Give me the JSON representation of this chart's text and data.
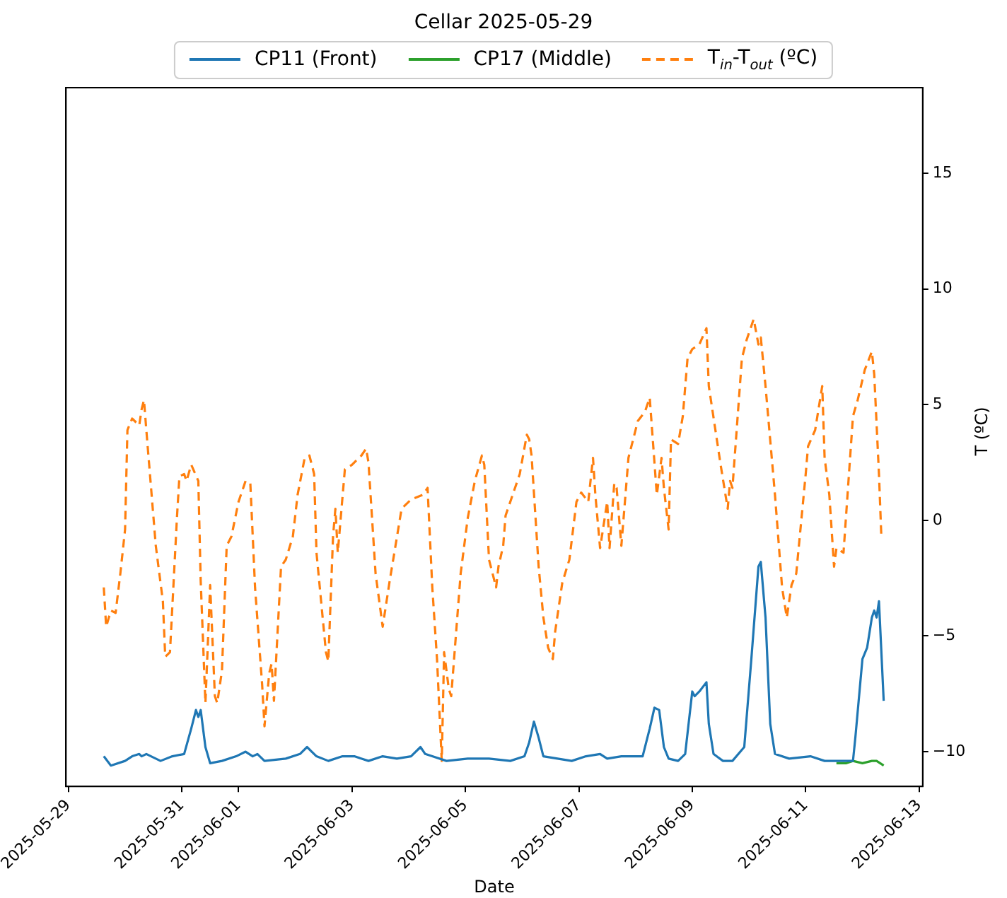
{
  "chart_data": {
    "type": "line",
    "title": "Cellar 2025-05-29",
    "xlabel": "Date",
    "y2label": "T (ºC)",
    "legend": "top",
    "grid": false,
    "marker": "none",
    "xlim": [
      "2025-05-28T23:00",
      "2025-06-13T01:30"
    ],
    "xticks": [
      "2025-05-29",
      "2025-05-31",
      "2025-06-01",
      "2025-06-03",
      "2025-06-05",
      "2025-06-07",
      "2025-06-09",
      "2025-06-11",
      "2025-06-13"
    ],
    "y2lim": [
      -11.5,
      18.7
    ],
    "y2ticks": [
      -10,
      -5,
      0,
      5,
      10,
      15
    ],
    "series": [
      {
        "name": "CP11 (Front)",
        "color": "#1f77b4",
        "axis": "y2",
        "line_style": "solid",
        "x": [
          "2025-05-29T15:00",
          "2025-05-29T18:00",
          "2025-05-30T00:00",
          "2025-05-30T03:00",
          "2025-05-30T06:00",
          "2025-05-30T07:00",
          "2025-05-30T09:00",
          "2025-05-30T15:00",
          "2025-05-30T20:00",
          "2025-05-31T01:00",
          "2025-05-31T04:00",
          "2025-05-31T06:00",
          "2025-05-31T07:00",
          "2025-05-31T08:00",
          "2025-05-31T10:00",
          "2025-05-31T12:00",
          "2025-05-31T17:00",
          "2025-05-31T23:00",
          "2025-06-01T03:00",
          "2025-06-01T06:00",
          "2025-06-01T08:00",
          "2025-06-01T11:00",
          "2025-06-01T20:00",
          "2025-06-02T02:00",
          "2025-06-02T05:00",
          "2025-06-02T07:00",
          "2025-06-02T09:00",
          "2025-06-02T14:00",
          "2025-06-02T20:00",
          "2025-06-03T01:00",
          "2025-06-03T07:00",
          "2025-06-03T13:00",
          "2025-06-03T19:00",
          "2025-06-04T01:00",
          "2025-06-04T05:00",
          "2025-06-04T07:00",
          "2025-06-04T10:00",
          "2025-06-04T16:00",
          "2025-06-05T01:00",
          "2025-06-05T10:00",
          "2025-06-05T19:00",
          "2025-06-06T01:00",
          "2025-06-06T03:00",
          "2025-06-06T05:00",
          "2025-06-06T07:00",
          "2025-06-06T09:00",
          "2025-06-06T15:00",
          "2025-06-06T21:00",
          "2025-06-07T03:00",
          "2025-06-07T09:00",
          "2025-06-07T12:00",
          "2025-06-07T18:00",
          "2025-06-08T03:00",
          "2025-06-08T06:00",
          "2025-06-08T08:00",
          "2025-06-08T10:00",
          "2025-06-08T12:00",
          "2025-06-08T14:00",
          "2025-06-08T18:00",
          "2025-06-08T21:00",
          "2025-06-09T00:00",
          "2025-06-09T01:00",
          "2025-06-09T03:00",
          "2025-06-09T06:00",
          "2025-06-09T07:00",
          "2025-06-09T09:00",
          "2025-06-09T13:00",
          "2025-06-09T17:00",
          "2025-06-09T22:00",
          "2025-06-10T01:00",
          "2025-06-10T04:00",
          "2025-06-10T05:00",
          "2025-06-10T07:00",
          "2025-06-10T09:00",
          "2025-06-10T11:00",
          "2025-06-10T17:00",
          "2025-06-11T02:00",
          "2025-06-11T08:00",
          "2025-06-11T13:00",
          "2025-06-11T17:00",
          "2025-06-11T20:00",
          "2025-06-11T21:00",
          "2025-06-12T00:00",
          "2025-06-12T02:00",
          "2025-06-12T04:00",
          "2025-06-12T05:00",
          "2025-06-12T06:00",
          "2025-06-12T07:00",
          "2025-06-12T09:00"
        ],
        "values": [
          -10.2,
          -10.6,
          -10.4,
          -10.2,
          -10.1,
          -10.2,
          -10.1,
          -10.4,
          -10.2,
          -10.1,
          -9.0,
          -8.2,
          -8.5,
          -8.2,
          -9.8,
          -10.5,
          -10.4,
          -10.2,
          -10.0,
          -10.2,
          -10.1,
          -10.4,
          -10.3,
          -10.1,
          -9.8,
          -10.0,
          -10.2,
          -10.4,
          -10.2,
          -10.2,
          -10.4,
          -10.2,
          -10.3,
          -10.2,
          -9.8,
          -10.1,
          -10.2,
          -10.4,
          -10.3,
          -10.3,
          -10.4,
          -10.2,
          -9.6,
          -8.7,
          -9.4,
          -10.2,
          -10.3,
          -10.4,
          -10.2,
          -10.1,
          -10.3,
          -10.2,
          -10.2,
          -9.0,
          -8.1,
          -8.2,
          -9.8,
          -10.3,
          -10.4,
          -10.1,
          -7.4,
          -7.6,
          -7.4,
          -7.0,
          -8.8,
          -10.1,
          -10.4,
          -10.4,
          -9.8,
          -6.0,
          -2.0,
          -1.8,
          -4.2,
          -8.8,
          -10.1,
          -10.3,
          -10.2,
          -10.4,
          -10.4,
          -10.4,
          -10.4,
          -9.4,
          -6.0,
          -5.5,
          -4.2,
          -3.9,
          -4.2,
          -3.5,
          -7.8
        ]
      },
      {
        "name": "CP17 (Middle)",
        "color": "#2ca02c",
        "axis": "y2",
        "line_style": "solid",
        "x": [
          "2025-06-11T13:00",
          "2025-06-11T17:00",
          "2025-06-11T20:00",
          "2025-06-12T00:00",
          "2025-06-12T04:00",
          "2025-06-12T06:00",
          "2025-06-12T09:00"
        ],
        "values": [
          -10.5,
          -10.5,
          -10.4,
          -10.5,
          -10.4,
          -10.4,
          -10.6
        ]
      },
      {
        "name": "T$_{in}$-T$_{out}$ (ºC)",
        "color": "#ff7f0e",
        "axis": "y2",
        "line_style": "dashed",
        "x": [
          "2025-05-29T15:00",
          "2025-05-29T16:00",
          "2025-05-29T18:00",
          "2025-05-29T20:00",
          "2025-05-29T22:00",
          "2025-05-30T00:00",
          "2025-05-30T01:00",
          "2025-05-30T03:00",
          "2025-05-30T06:00",
          "2025-05-30T07:00",
          "2025-05-30T08:00",
          "2025-05-30T09:00",
          "2025-05-30T13:00",
          "2025-05-30T16:00",
          "2025-05-30T17:00",
          "2025-05-30T19:00",
          "2025-05-30T22:00",
          "2025-05-30T23:00",
          "2025-05-31T01:00",
          "2025-05-31T02:00",
          "2025-05-31T04:00",
          "2025-05-31T07:00",
          "2025-05-31T08:00",
          "2025-05-31T10:00",
          "2025-05-31T11:00",
          "2025-05-31T12:00",
          "2025-05-31T14:00",
          "2025-05-31T15:00",
          "2025-05-31T17:00",
          "2025-05-31T19:00",
          "2025-05-31T21:00",
          "2025-06-01T00:00",
          "2025-06-01T03:00",
          "2025-06-01T05:00",
          "2025-06-01T07:00",
          "2025-06-01T10:00",
          "2025-06-01T11:00",
          "2025-06-01T13:00",
          "2025-06-01T14:00",
          "2025-06-01T15:00",
          "2025-06-01T18:00",
          "2025-06-01T20:00",
          "2025-06-01T23:00",
          "2025-06-02T01:00",
          "2025-06-02T04:00",
          "2025-06-02T06:00",
          "2025-06-02T08:00",
          "2025-06-02T09:00",
          "2025-06-02T13:00",
          "2025-06-02T14:00",
          "2025-06-02T16:00",
          "2025-06-02T17:00",
          "2025-06-02T18:00",
          "2025-06-02T21:00",
          "2025-06-03T00:00",
          "2025-06-03T04:00",
          "2025-06-03T06:00",
          "2025-06-03T07:00",
          "2025-06-03T10:00",
          "2025-06-03T13:00",
          "2025-06-03T16:00",
          "2025-06-03T21:00",
          "2025-06-04T01:00",
          "2025-06-04T06:00",
          "2025-06-04T08:00",
          "2025-06-04T10:00",
          "2025-06-04T12:00",
          "2025-06-04T14:00",
          "2025-06-04T15:00",
          "2025-06-04T17:00",
          "2025-06-04T18:00",
          "2025-06-04T22:00",
          "2025-06-05T01:00",
          "2025-06-05T04:00",
          "2025-06-05T07:00",
          "2025-06-05T08:00",
          "2025-06-05T10:00",
          "2025-06-05T13:00",
          "2025-06-05T14:00",
          "2025-06-05T16:00",
          "2025-06-05T17:00",
          "2025-06-05T20:00",
          "2025-06-05T23:00",
          "2025-06-06T02:00",
          "2025-06-06T03:00",
          "2025-06-06T04:00",
          "2025-06-06T07:00",
          "2025-06-06T09:00",
          "2025-06-06T11:00",
          "2025-06-06T13:00",
          "2025-06-06T14:00",
          "2025-06-06T17:00",
          "2025-06-06T20:00",
          "2025-06-06T23:00",
          "2025-06-07T01:00",
          "2025-06-07T04:00",
          "2025-06-07T06:00",
          "2025-06-07T07:00",
          "2025-06-07T09:00",
          "2025-06-07T12:00",
          "2025-06-07T13:00",
          "2025-06-07T15:00",
          "2025-06-07T16:00",
          "2025-06-07T18:00",
          "2025-06-07T21:00",
          "2025-06-08T01:00",
          "2025-06-08T04:00",
          "2025-06-08T06:00",
          "2025-06-08T07:00",
          "2025-06-08T09:00",
          "2025-06-08T11:00",
          "2025-06-08T12:00",
          "2025-06-08T14:00",
          "2025-06-08T15:00",
          "2025-06-08T18:00",
          "2025-06-08T20:00",
          "2025-06-08T22:00",
          "2025-06-09T00:00",
          "2025-06-09T03:00",
          "2025-06-09T06:00",
          "2025-06-09T07:00",
          "2025-06-09T12:00",
          "2025-06-09T15:00",
          "2025-06-09T16:00",
          "2025-06-09T17:00",
          "2025-06-09T21:00",
          "2025-06-09T23:00",
          "2025-06-10T02:00",
          "2025-06-10T04:00",
          "2025-06-10T05:00",
          "2025-06-10T07:00",
          "2025-06-10T11:00",
          "2025-06-10T14:00",
          "2025-06-10T16:00",
          "2025-06-10T18:00",
          "2025-06-10T20:00",
          "2025-06-11T00:00",
          "2025-06-11T01:00",
          "2025-06-11T04:00",
          "2025-06-11T07:00",
          "2025-06-11T08:00",
          "2025-06-11T10:00",
          "2025-06-11T12:00",
          "2025-06-11T13:00",
          "2025-06-11T16:00",
          "2025-06-11T20:00",
          "2025-06-11T22:00",
          "2025-06-12T01:00",
          "2025-06-12T04:00",
          "2025-06-12T05:00",
          "2025-06-12T07:00",
          "2025-06-12T08:00"
        ],
        "values": [
          -2.9,
          -4.6,
          -3.9,
          -4.0,
          -2.3,
          -0.4,
          3.9,
          4.4,
          4.1,
          4.8,
          5.2,
          3.9,
          -1.1,
          -3.5,
          -5.9,
          -5.7,
          0.2,
          1.9,
          2.0,
          1.7,
          2.4,
          1.7,
          -2.6,
          -7.9,
          -5.4,
          -2.8,
          -7.6,
          -7.9,
          -6.5,
          -1.1,
          -0.7,
          0.8,
          1.7,
          1.6,
          -2.9,
          -7.1,
          -8.9,
          -6.6,
          -6.2,
          -7.8,
          -2.0,
          -1.7,
          -0.7,
          1.1,
          2.7,
          2.8,
          2.0,
          -1.4,
          -5.7,
          -6.1,
          -0.7,
          0.5,
          -1.4,
          2.2,
          2.4,
          2.8,
          3.1,
          2.5,
          -2.3,
          -4.6,
          -2.6,
          0.5,
          0.9,
          1.1,
          1.4,
          -2.9,
          -6.0,
          -10.4,
          -5.7,
          -7.3,
          -7.6,
          -2.3,
          0.1,
          1.7,
          2.8,
          2.4,
          -1.7,
          -2.9,
          -2.0,
          -1.1,
          0.2,
          1.1,
          2.0,
          3.7,
          3.5,
          2.8,
          -2.0,
          -4.2,
          -5.5,
          -6.0,
          -4.8,
          -2.7,
          -1.7,
          0.8,
          1.2,
          0.8,
          2.7,
          1.1,
          -1.2,
          0.8,
          -1.2,
          1.6,
          1.4,
          -1.1,
          2.7,
          4.3,
          4.7,
          5.3,
          3.9,
          1.1,
          2.7,
          1.4,
          -0.4,
          3.5,
          3.3,
          4.5,
          7.0,
          7.4,
          7.6,
          8.3,
          5.8,
          2.4,
          0.5,
          1.7,
          1.4,
          7.0,
          7.8,
          8.7,
          7.6,
          7.9,
          5.8,
          1.1,
          -2.9,
          -4.2,
          -2.8,
          -2.3,
          2.0,
          3.2,
          3.9,
          5.8,
          2.7,
          1.1,
          -2.0,
          -1.2,
          -1.4,
          4.5,
          5.2,
          6.5,
          7.3,
          6.3,
          2.0,
          -0.7
        ]
      }
    ]
  }
}
